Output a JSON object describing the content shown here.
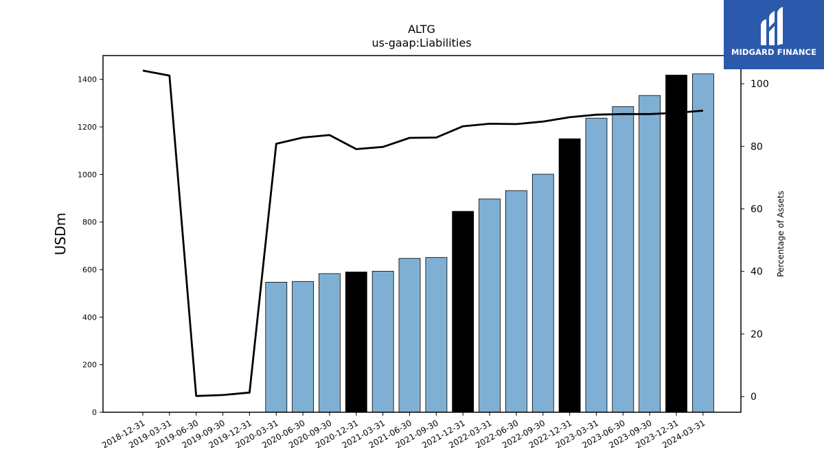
{
  "brand": {
    "name": "MIDGARD FINANCE",
    "color": "#2b5aad"
  },
  "chart_data": {
    "type": "bar",
    "title": "ALTG",
    "subtitle": "us-gaap:Liabilities",
    "ylabel": "USDm",
    "y2label": "Percentage of Assets",
    "ylim": [
      0,
      1500
    ],
    "y2lim": [
      -5,
      109
    ],
    "yticks": [
      0,
      200,
      400,
      600,
      800,
      1000,
      1200,
      1400
    ],
    "y2ticks": [
      0,
      20,
      40,
      60,
      80,
      100
    ],
    "grid": false,
    "categories": [
      "2018-12-31",
      "2019-03-31",
      "2019-06-30",
      "2019-09-30",
      "2019-12-31",
      "2020-03-31",
      "2020-06-30",
      "2020-09-30",
      "2020-12-31",
      "2021-03-31",
      "2021-06-30",
      "2021-09-30",
      "2021-12-31",
      "2022-03-31",
      "2022-06-30",
      "2022-09-30",
      "2022-12-31",
      "2023-03-31",
      "2023-06-30",
      "2023-09-30",
      "2023-12-31",
      "2024-03-31"
    ],
    "series": [
      {
        "type": "bar",
        "values": [
          null,
          null,
          null,
          null,
          null,
          547,
          550,
          583,
          590,
          593,
          647,
          651,
          845,
          897,
          932,
          1001,
          1150,
          1237,
          1285,
          1332,
          1418,
          1423
        ],
        "colors": [
          "#7fb0d4",
          "#7fb0d4",
          "#7fb0d4",
          "#7fb0d4",
          "#7fb0d4",
          "#7fb0d4",
          "#7fb0d4",
          "#7fb0d4",
          "#000000",
          "#7fb0d4",
          "#7fb0d4",
          "#7fb0d4",
          "#000000",
          "#7fb0d4",
          "#7fb0d4",
          "#7fb0d4",
          "#000000",
          "#7fb0d4",
          "#7fb0d4",
          "#7fb0d4",
          "#000000",
          "#7fb0d4"
        ]
      },
      {
        "type": "line",
        "axis": "right",
        "color": "#000000",
        "values": [
          104.2,
          102.6,
          0.2,
          0.5,
          1.3,
          80.8,
          82.8,
          83.6,
          79.1,
          79.8,
          82.7,
          82.8,
          86.4,
          87.2,
          87.1,
          87.9,
          89.3,
          90.1,
          90.3,
          90.3,
          90.7,
          91.4
        ]
      }
    ]
  }
}
